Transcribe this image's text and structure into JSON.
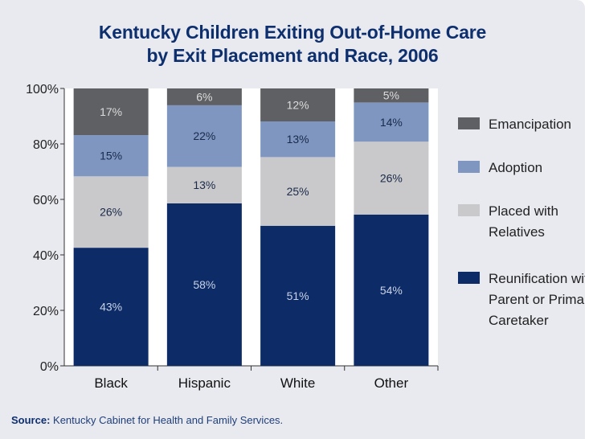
{
  "chart_data": {
    "type": "bar",
    "stacked": true,
    "title_lines": [
      "Kentucky Children Exiting Out-of-Home Care",
      "by Exit Placement and Race, 2006"
    ],
    "categories": [
      "Black",
      "Hispanic",
      "White",
      "Other"
    ],
    "series": [
      {
        "name": "Reunification with Parent or Primary Caretaker",
        "legend_lines": [
          "Reunification with",
          "Parent or Primary",
          "Caretaker"
        ],
        "color": "#0d2b66",
        "label_color": "#c9d3e8",
        "values": [
          43,
          58,
          51,
          54
        ]
      },
      {
        "name": "Placed with Relatives",
        "legend_lines": [
          "Placed with",
          "Relatives"
        ],
        "color": "#c9c9cb",
        "label_color": "#1a2a4a",
        "values": [
          26,
          13,
          25,
          26
        ]
      },
      {
        "name": "Adoption",
        "legend_lines": [
          "Adoption"
        ],
        "color": "#7f97c0",
        "label_color": "#1a2a4a",
        "values": [
          15,
          22,
          13,
          14
        ]
      },
      {
        "name": "Emancipation",
        "legend_lines": [
          "Emancipation"
        ],
        "color": "#5f6063",
        "label_color": "#dcdcdc",
        "values": [
          17,
          6,
          12,
          5
        ]
      }
    ],
    "y_ticks": [
      "0%",
      "20%",
      "40%",
      "60%",
      "80%",
      "100%"
    ],
    "ylim": [
      0,
      100
    ],
    "legend_position": "right",
    "grid": false
  },
  "source": {
    "label": "Source:",
    "text": "Kentucky Cabinet for Health and Family Services."
  }
}
